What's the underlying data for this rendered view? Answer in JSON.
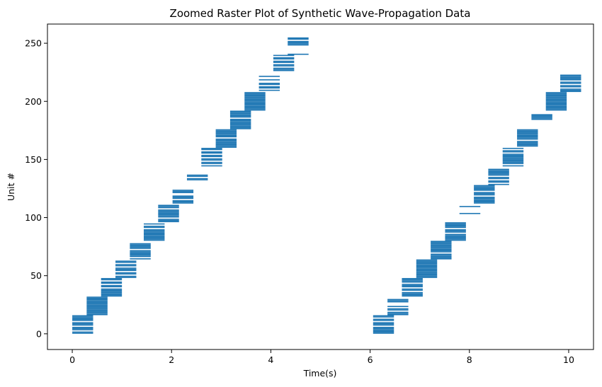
{
  "chart_data": {
    "type": "raster",
    "title": "Zoomed Raster Plot of Synthetic Wave-Propagation Data",
    "xlabel": "Time(s)",
    "ylabel": "Unit #",
    "xlim": [
      -0.5,
      10.5
    ],
    "ylim": [
      -13.5,
      266.5
    ],
    "x_ticks": [
      0,
      2,
      4,
      6,
      8,
      10
    ],
    "x_tick_labels": [
      "0",
      "2",
      "4",
      "6",
      "8",
      "10"
    ],
    "y_ticks": [
      0,
      50,
      100,
      150,
      200,
      250
    ],
    "y_tick_labels": [
      "0",
      "50",
      "100",
      "150",
      "200",
      "250"
    ],
    "bar_color": "#1f77b4",
    "grid": false,
    "block_width_s": 0.42,
    "waves": [
      {
        "name": "",
        "blocks": [
          {
            "x": 0.0,
            "units": [
              0,
              1,
              3,
              4,
              5,
              7,
              8,
              9,
              11,
              12,
              13,
              14,
              15
            ]
          },
          {
            "x": 0.29,
            "units": [
              16,
              17,
              18,
              19,
              20,
              21,
              22,
              23,
              24,
              25,
              26,
              27,
              28,
              29,
              30,
              31
            ]
          },
          {
            "x": 0.58,
            "units": [
              32,
              33,
              34,
              35,
              36,
              37,
              38,
              40,
              41,
              43,
              44,
              46,
              47
            ]
          },
          {
            "x": 0.87,
            "units": [
              48,
              49,
              51,
              52,
              54,
              55,
              56,
              58,
              59,
              61,
              62
            ]
          },
          {
            "x": 1.16,
            "units": [
              64,
              66,
              67,
              68,
              69,
              70,
              71,
              73,
              74,
              75,
              76,
              77
            ]
          },
          {
            "x": 1.44,
            "units": [
              80,
              81,
              82,
              83,
              84,
              85,
              86,
              87,
              88,
              89,
              91,
              92,
              94
            ]
          },
          {
            "x": 1.73,
            "units": [
              96,
              97,
              98,
              100,
              101,
              102,
              103,
              104,
              105,
              106,
              108,
              109,
              110
            ]
          },
          {
            "x": 2.02,
            "units": [
              112,
              113,
              114,
              116,
              117,
              118,
              121,
              122,
              123
            ]
          },
          {
            "x": 2.31,
            "units": [
              132,
              133,
              135,
              136
            ]
          },
          {
            "x": 2.6,
            "units": [
              144,
              146,
              147,
              149,
              150,
              152,
              153,
              155,
              156,
              158,
              159
            ]
          },
          {
            "x": 2.89,
            "units": [
              160,
              161,
              162,
              163,
              164,
              165,
              166,
              167,
              169,
              170,
              171,
              172,
              173,
              174,
              175
            ]
          },
          {
            "x": 3.18,
            "units": [
              176,
              177,
              178,
              179,
              180,
              181,
              182,
              183,
              184,
              186,
              187,
              188,
              189,
              190,
              191
            ]
          },
          {
            "x": 3.47,
            "units": [
              192,
              193,
              194,
              195,
              196,
              197,
              198,
              199,
              200,
              201,
              202,
              203,
              204,
              205,
              206,
              207
            ]
          },
          {
            "x": 3.76,
            "units": [
              209,
              211,
              212,
              214,
              215,
              218,
              221
            ]
          },
          {
            "x": 4.05,
            "units": [
              226,
              227,
              228,
              230,
              231,
              233,
              234,
              236,
              237,
              239
            ]
          },
          {
            "x": 4.34,
            "units": [
              240,
              248,
              249,
              250,
              251,
              253,
              254
            ]
          }
        ]
      },
      {
        "name": "",
        "blocks": [
          {
            "x": 6.06,
            "units": [
              0,
              1,
              2,
              3,
              4,
              5,
              7,
              8,
              9,
              11,
              12,
              14,
              15
            ]
          },
          {
            "x": 6.35,
            "units": [
              16,
              17,
              18,
              20,
              21,
              23,
              27,
              28,
              29
            ]
          },
          {
            "x": 6.64,
            "units": [
              32,
              33,
              34,
              35,
              37,
              38,
              40,
              41,
              42,
              44,
              45,
              46,
              47
            ]
          },
          {
            "x": 6.93,
            "units": [
              48,
              49,
              50,
              51,
              52,
              53,
              54,
              55,
              56,
              57,
              58,
              59,
              60,
              61,
              62,
              63
            ]
          },
          {
            "x": 7.22,
            "units": [
              64,
              65,
              66,
              67,
              68,
              70,
              71,
              72,
              73,
              74,
              75,
              76,
              77,
              78,
              79
            ]
          },
          {
            "x": 7.51,
            "units": [
              80,
              81,
              82,
              83,
              84,
              85,
              87,
              88,
              89,
              91,
              92,
              93,
              94,
              95
            ]
          },
          {
            "x": 7.8,
            "units": [
              103,
              109
            ]
          },
          {
            "x": 8.09,
            "units": [
              112,
              113,
              114,
              115,
              116,
              117,
              119,
              120,
              121,
              123,
              124,
              125,
              126,
              127
            ]
          },
          {
            "x": 8.38,
            "units": [
              128,
              130,
              131,
              133,
              134,
              136,
              137,
              138,
              139,
              140,
              141
            ]
          },
          {
            "x": 8.67,
            "units": [
              144,
              146,
              147,
              148,
              149,
              150,
              151,
              152,
              153,
              154,
              156,
              157,
              159
            ]
          },
          {
            "x": 8.96,
            "units": [
              161,
              162,
              163,
              164,
              165,
              167,
              168,
              169,
              170,
              171,
              172,
              173,
              174,
              175
            ]
          },
          {
            "x": 9.25,
            "units": [
              184,
              185,
              186,
              187,
              188
            ]
          },
          {
            "x": 9.54,
            "units": [
              192,
              193,
              194,
              195,
              196,
              197,
              198,
              199,
              200,
              201,
              202,
              203,
              204,
              205,
              206,
              207
            ]
          },
          {
            "x": 9.83,
            "units": [
              208,
              209,
              210,
              212,
              213,
              215,
              216,
              218,
              219,
              220,
              221,
              222
            ]
          }
        ]
      }
    ]
  }
}
